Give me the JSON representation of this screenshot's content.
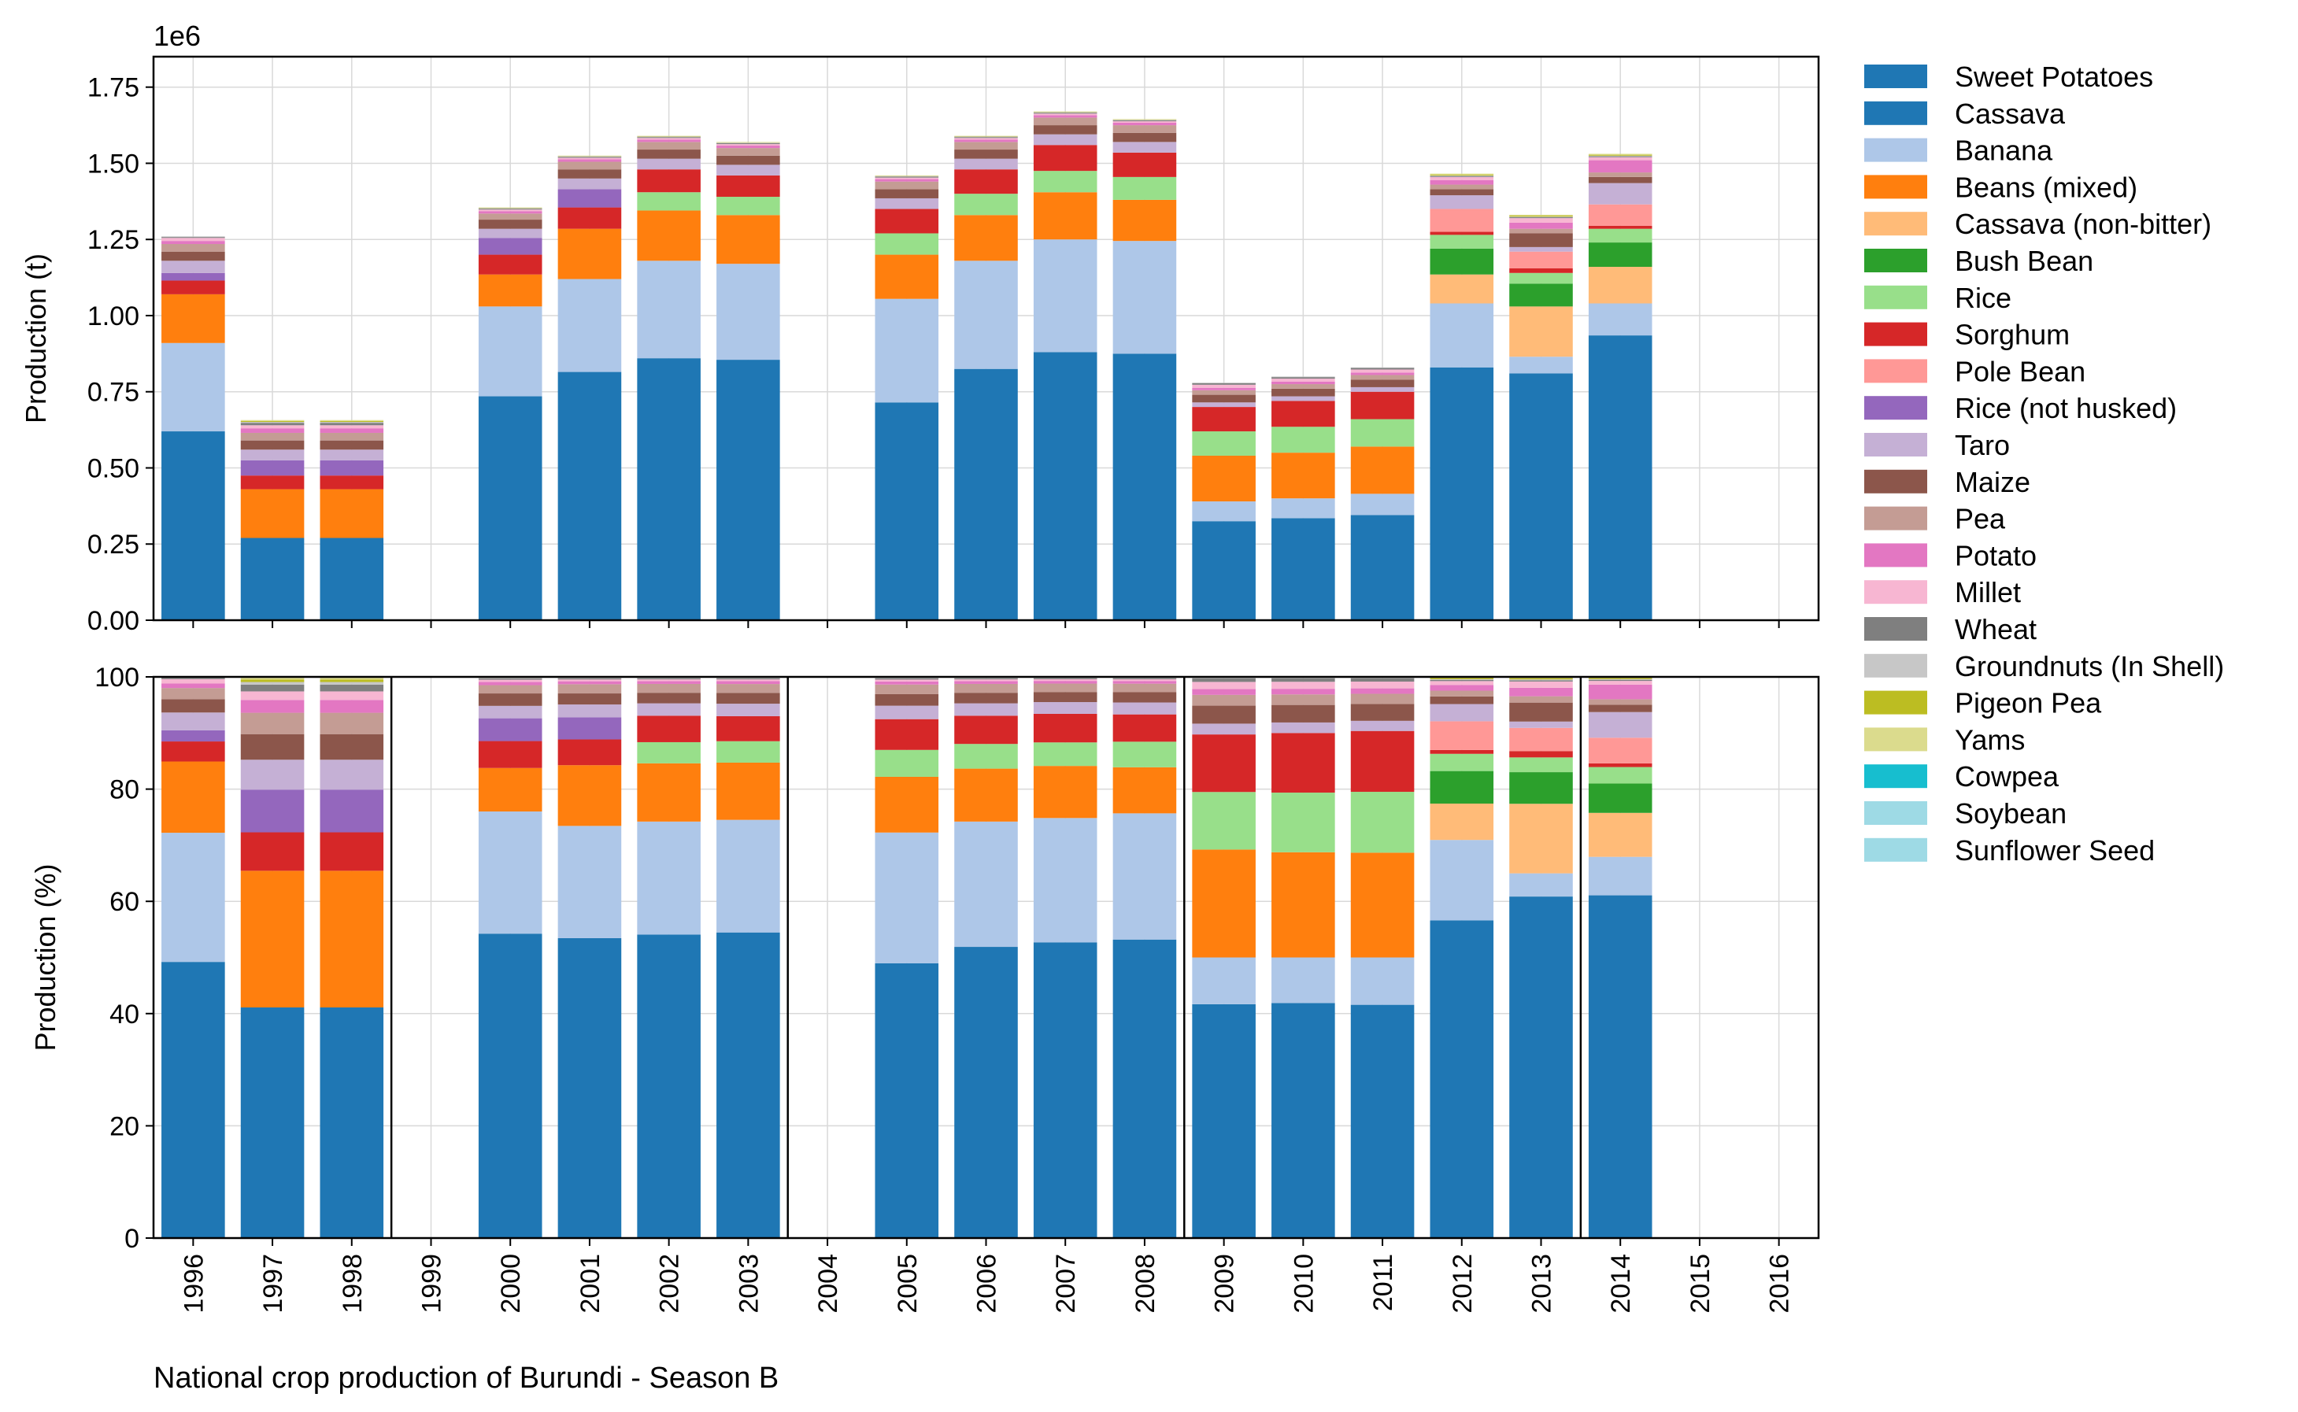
{
  "chart_data": {
    "type": "bar",
    "stacked": true,
    "caption": "National crop production of Burundi - Season B",
    "categories": [
      "1996",
      "1997",
      "1998",
      "1999",
      "2000",
      "2001",
      "2002",
      "2003",
      "2004",
      "2005",
      "2006",
      "2007",
      "2008",
      "2009",
      "2010",
      "2011",
      "2012",
      "2013",
      "2014",
      "2015",
      "2016"
    ],
    "series": [
      {
        "name": "Sweet Potatoes",
        "color": "#1f77b4"
      },
      {
        "name": "Cassava",
        "color": "#1f77b4"
      },
      {
        "name": "Banana",
        "color": "#aec7e8"
      },
      {
        "name": "Beans (mixed)",
        "color": "#ff7f0e"
      },
      {
        "name": "Cassava (non-bitter)",
        "color": "#ffbb78"
      },
      {
        "name": "Bush Bean",
        "color": "#2ca02c"
      },
      {
        "name": "Rice",
        "color": "#98df8a"
      },
      {
        "name": "Sorghum",
        "color": "#d62728"
      },
      {
        "name": "Pole Bean",
        "color": "#ff9896"
      },
      {
        "name": "Rice (not husked)",
        "color": "#9467bd"
      },
      {
        "name": "Taro",
        "color": "#c5b0d5"
      },
      {
        "name": "Maize",
        "color": "#8c564b"
      },
      {
        "name": "Pea",
        "color": "#c49c94"
      },
      {
        "name": "Potato",
        "color": "#e377c2"
      },
      {
        "name": "Millet",
        "color": "#f7b6d2"
      },
      {
        "name": "Wheat",
        "color": "#7f7f7f"
      },
      {
        "name": "Groundnuts (In Shell)",
        "color": "#c7c7c7"
      },
      {
        "name": "Pigeon Pea",
        "color": "#bcbd22"
      },
      {
        "name": "Yams",
        "color": "#dbdb8d"
      },
      {
        "name": "Cowpea",
        "color": "#17becf"
      },
      {
        "name": "Soybean",
        "color": "#9edae5"
      },
      {
        "name": "Sunflower Seed",
        "color": "#9edae5"
      }
    ],
    "values": {
      "1996": {
        "Sweet Potatoes": 620000,
        "Banana": 290000,
        "Beans (mixed)": 160000,
        "Sorghum": 45000,
        "Rice (not husked)": 25000,
        "Taro": 40000,
        "Maize": 30000,
        "Pea": 25000,
        "Potato": 10000,
        "Millet": 10000,
        "Wheat": 3000,
        "Groundnuts (In Shell)": 2000
      },
      "1997": {
        "Sweet Potatoes": 270000,
        "Beans (mixed)": 160000,
        "Sorghum": 45000,
        "Rice (not husked)": 50000,
        "Taro": 35000,
        "Maize": 30000,
        "Pea": 25000,
        "Potato": 15000,
        "Millet": 10000,
        "Wheat": 8000,
        "Groundnuts (In Shell)": 3000,
        "Pigeon Pea": 3000,
        "Yams": 3000
      },
      "1998": {
        "Sweet Potatoes": 270000,
        "Beans (mixed)": 160000,
        "Sorghum": 45000,
        "Rice (not husked)": 50000,
        "Taro": 35000,
        "Maize": 30000,
        "Pea": 25000,
        "Potato": 15000,
        "Millet": 10000,
        "Wheat": 8000,
        "Groundnuts (In Shell)": 3000,
        "Pigeon Pea": 3000,
        "Yams": 3000
      },
      "2000": {
        "Sweet Potatoes": 735000,
        "Banana": 295000,
        "Beans (mixed)": 105000,
        "Sorghum": 65000,
        "Rice (not husked)": 55000,
        "Taro": 30000,
        "Maize": 30000,
        "Pea": 20000,
        "Potato": 8000,
        "Millet": 5000,
        "Wheat": 3000,
        "Groundnuts (In Shell)": 2000,
        "Pigeon Pea": 1000,
        "Yams": 1000
      },
      "2001": {
        "Sweet Potatoes": 815000,
        "Banana": 305000,
        "Beans (mixed)": 165000,
        "Sorghum": 70000,
        "Rice (not husked)": 60000,
        "Taro": 35000,
        "Maize": 30000,
        "Pea": 25000,
        "Potato": 8000,
        "Millet": 5000,
        "Wheat": 3000,
        "Groundnuts (In Shell)": 2000,
        "Pigeon Pea": 1000,
        "Yams": 1000
      },
      "2002": {
        "Sweet Potatoes": 860000,
        "Banana": 320000,
        "Beans (mixed)": 165000,
        "Rice": 60000,
        "Sorghum": 75000,
        "Taro": 35000,
        "Maize": 30000,
        "Pea": 25000,
        "Potato": 8000,
        "Millet": 5000,
        "Wheat": 3000,
        "Groundnuts (In Shell)": 2000,
        "Pigeon Pea": 1000,
        "Yams": 1000
      },
      "2003": {
        "Sweet Potatoes": 855000,
        "Banana": 315000,
        "Beans (mixed)": 160000,
        "Rice": 60000,
        "Sorghum": 70000,
        "Taro": 35000,
        "Maize": 30000,
        "Pea": 25000,
        "Potato": 8000,
        "Millet": 5000,
        "Wheat": 3000,
        "Groundnuts (In Shell)": 2000,
        "Pigeon Pea": 1000,
        "Yams": 1000
      },
      "2005": {
        "Sweet Potatoes": 715000,
        "Banana": 340000,
        "Beans (mixed)": 145000,
        "Rice": 70000,
        "Sorghum": 80000,
        "Taro": 35000,
        "Maize": 30000,
        "Pea": 25000,
        "Potato": 8000,
        "Millet": 5000,
        "Wheat": 3000,
        "Groundnuts (In Shell)": 2000,
        "Pigeon Pea": 1000,
        "Yams": 1000
      },
      "2006": {
        "Sweet Potatoes": 825000,
        "Banana": 355000,
        "Beans (mixed)": 150000,
        "Rice": 70000,
        "Sorghum": 80000,
        "Taro": 35000,
        "Maize": 30000,
        "Pea": 25000,
        "Potato": 8000,
        "Millet": 5000,
        "Wheat": 3000,
        "Groundnuts (In Shell)": 2000,
        "Pigeon Pea": 1000,
        "Yams": 1000
      },
      "2007": {
        "Sweet Potatoes": 880000,
        "Banana": 370000,
        "Beans (mixed)": 155000,
        "Rice": 70000,
        "Sorghum": 85000,
        "Taro": 35000,
        "Maize": 30000,
        "Pea": 25000,
        "Potato": 8000,
        "Millet": 5000,
        "Wheat": 3000,
        "Groundnuts (In Shell)": 2000,
        "Pigeon Pea": 1000,
        "Yams": 1000
      },
      "2008": {
        "Sweet Potatoes": 875000,
        "Banana": 370000,
        "Beans (mixed)": 135000,
        "Rice": 75000,
        "Sorghum": 80000,
        "Taro": 35000,
        "Maize": 30000,
        "Pea": 25000,
        "Potato": 8000,
        "Millet": 5000,
        "Wheat": 3000,
        "Groundnuts (In Shell)": 2000,
        "Pigeon Pea": 1000,
        "Yams": 1000
      },
      "2009": {
        "Sweet Potatoes": 325000,
        "Banana": 65000,
        "Beans (mixed)": 150000,
        "Rice": 80000,
        "Sorghum": 80000,
        "Taro": 15000,
        "Maize": 25000,
        "Pea": 15000,
        "Potato": 8000,
        "Millet": 10000,
        "Wheat": 5000,
        "Groundnuts (In Shell)": 2000
      },
      "2010": {
        "Sweet Potatoes": 335000,
        "Banana": 65000,
        "Beans (mixed)": 150000,
        "Rice": 85000,
        "Sorghum": 85000,
        "Taro": 15000,
        "Maize": 25000,
        "Pea": 15000,
        "Potato": 8000,
        "Millet": 10000,
        "Wheat": 5000,
        "Groundnuts (In Shell)": 2000
      },
      "2011": {
        "Sweet Potatoes": 345000,
        "Banana": 70000,
        "Beans (mixed)": 155000,
        "Rice": 90000,
        "Sorghum": 90000,
        "Taro": 15000,
        "Maize": 25000,
        "Pea": 15000,
        "Potato": 8000,
        "Millet": 10000,
        "Wheat": 5000,
        "Groundnuts (In Shell)": 2000
      },
      "2012": {
        "Sweet Potatoes": 830000,
        "Banana": 210000,
        "Cassava (non-bitter)": 95000,
        "Bush Bean": 85000,
        "Rice": 45000,
        "Sorghum": 10000,
        "Pole Bean": 75000,
        "Taro": 45000,
        "Maize": 20000,
        "Pea": 15000,
        "Potato": 15000,
        "Millet": 10000,
        "Wheat": 3000,
        "Groundnuts (In Shell)": 2000,
        "Pigeon Pea": 3000,
        "Yams": 3000
      },
      "2013": {
        "Sweet Potatoes": 810000,
        "Banana": 55000,
        "Cassava (non-bitter)": 165000,
        "Bush Bean": 75000,
        "Rice": 35000,
        "Sorghum": 15000,
        "Pole Bean": 55000,
        "Taro": 15000,
        "Maize": 45000,
        "Pea": 15000,
        "Potato": 20000,
        "Millet": 15000,
        "Wheat": 3000,
        "Groundnuts (In Shell)": 2000,
        "Pigeon Pea": 3000,
        "Yams": 3000
      },
      "2014": {
        "Sweet Potatoes": 935000,
        "Banana": 105000,
        "Cassava (non-bitter)": 120000,
        "Bush Bean": 80000,
        "Rice": 45000,
        "Sorghum": 10000,
        "Pole Bean": 70000,
        "Taro": 70000,
        "Maize": 20000,
        "Pea": 15000,
        "Potato": 40000,
        "Millet": 10000,
        "Wheat": 3000,
        "Groundnuts (In Shell)": 2000,
        "Pigeon Pea": 3000,
        "Yams": 3000
      }
    },
    "top": {
      "ylabel": "Production (t)",
      "ylim": [
        0,
        1850000
      ],
      "yticks": [
        "0.00",
        "0.25",
        "0.50",
        "0.75",
        "1.00",
        "1.25",
        "1.50",
        "1.75"
      ],
      "ytick_values": [
        0,
        250000,
        500000,
        750000,
        1000000,
        1250000,
        1500000,
        1750000
      ],
      "scale_label": "1e6",
      "grid": true
    },
    "bottom": {
      "ylabel": "Production (%)",
      "ylim": [
        0,
        100
      ],
      "yticks": [
        "0",
        "20",
        "40",
        "60",
        "80",
        "100"
      ],
      "ytick_values": [
        0,
        20,
        40,
        60,
        80,
        100
      ],
      "grid": true,
      "separators_after": [
        "1998",
        "2003",
        "2008",
        "2013"
      ]
    },
    "legend_placement": "right-outside"
  }
}
